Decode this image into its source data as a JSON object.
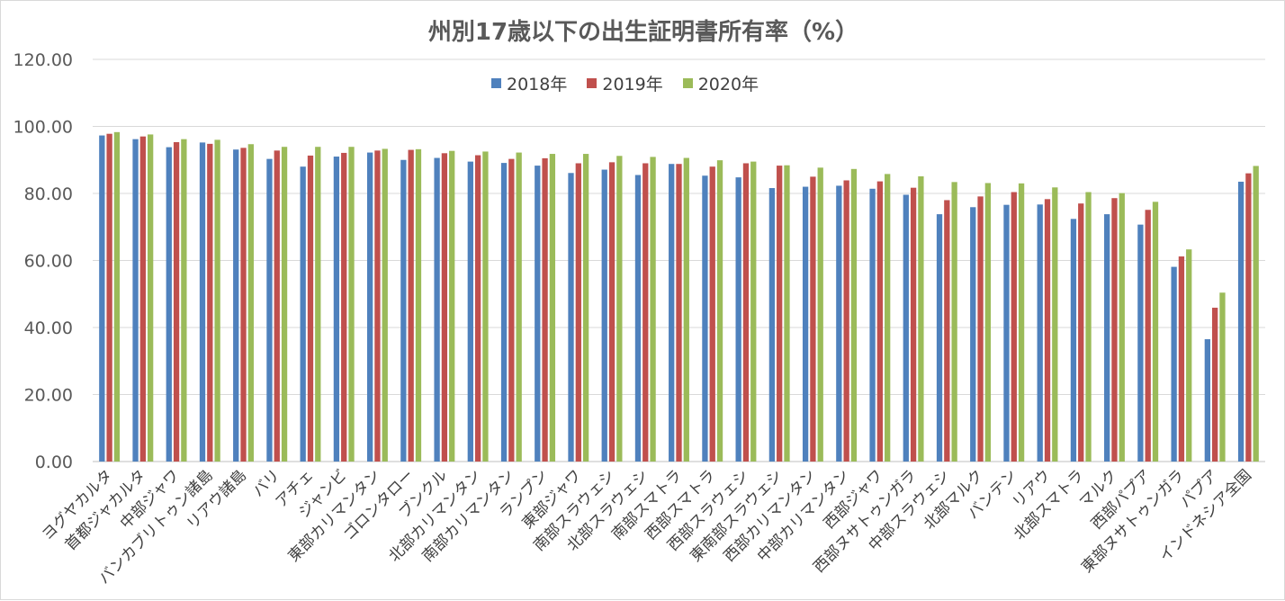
{
  "chart_data": {
    "type": "bar",
    "title": "州別17歳以下の出生証明書所有率（%）",
    "xlabel": "",
    "ylabel": "",
    "ylim": [
      0,
      120
    ],
    "yticks": [
      "0.00",
      "20.00",
      "40.00",
      "60.00",
      "80.00",
      "100.00",
      "120.00"
    ],
    "grid": true,
    "legend_position": "top",
    "categories": [
      "ヨグヤカルタ",
      "首都ジャカルタ",
      "中部ジャワ",
      "バンカブリトゥン諸島",
      "リアウ諸島",
      "バリ",
      "アチェ",
      "ジャンビ",
      "東部カリマンタン",
      "ゴロンタロー",
      "ブンクル",
      "北部カリマンタン",
      "南部カリマンタン",
      "ランプン",
      "東部ジャワ",
      "南部スラウェシ",
      "北部スラウェシ",
      "南部スマトラ",
      "西部スマトラ",
      "西部スラウェシ",
      "東南部スラウェシ",
      "西部カリマンタン",
      "中部カリマンタン",
      "西部ジャワ",
      "西部ヌサトゥンガラ",
      "中部スラウェシ",
      "北部マルク",
      "バンテン",
      "リアウ",
      "北部スマトラ",
      "マルク",
      "西部パプア",
      "東部ヌサトゥンガラ",
      "パプア",
      "インドネシア全国"
    ],
    "series": [
      {
        "name": "2018年",
        "color": "#4f81bd",
        "values": [
          97.3,
          96.2,
          93.8,
          95.2,
          93.1,
          90.3,
          88.0,
          91.0,
          92.2,
          90.0,
          90.6,
          89.5,
          89.1,
          88.3,
          86.1,
          87.1,
          85.5,
          88.8,
          85.3,
          84.8,
          81.6,
          82.0,
          82.3,
          81.4,
          79.6,
          73.8,
          75.9,
          76.6,
          76.7,
          72.4,
          73.8,
          70.7,
          58.1,
          36.5,
          83.5
        ]
      },
      {
        "name": "2019年",
        "color": "#c0504d",
        "values": [
          97.8,
          97.0,
          95.3,
          94.8,
          93.6,
          92.8,
          91.3,
          92.1,
          92.8,
          93.0,
          92.0,
          91.4,
          90.3,
          90.5,
          89.0,
          89.3,
          89.0,
          88.8,
          88.0,
          89.0,
          88.3,
          85.0,
          83.9,
          83.6,
          81.7,
          78.0,
          79.1,
          80.4,
          78.3,
          77.0,
          78.6,
          75.1,
          61.2,
          45.9,
          86.0
        ]
      },
      {
        "name": "2020年",
        "color": "#9bbb59",
        "values": [
          98.3,
          97.6,
          96.2,
          96.0,
          94.7,
          93.9,
          93.9,
          93.9,
          93.3,
          93.2,
          92.7,
          92.5,
          92.2,
          91.8,
          91.8,
          91.2,
          90.9,
          90.6,
          89.9,
          89.5,
          88.4,
          87.7,
          87.3,
          85.8,
          85.1,
          83.4,
          83.1,
          83.0,
          81.8,
          80.4,
          80.1,
          77.5,
          63.3,
          50.4,
          88.2
        ]
      }
    ]
  }
}
